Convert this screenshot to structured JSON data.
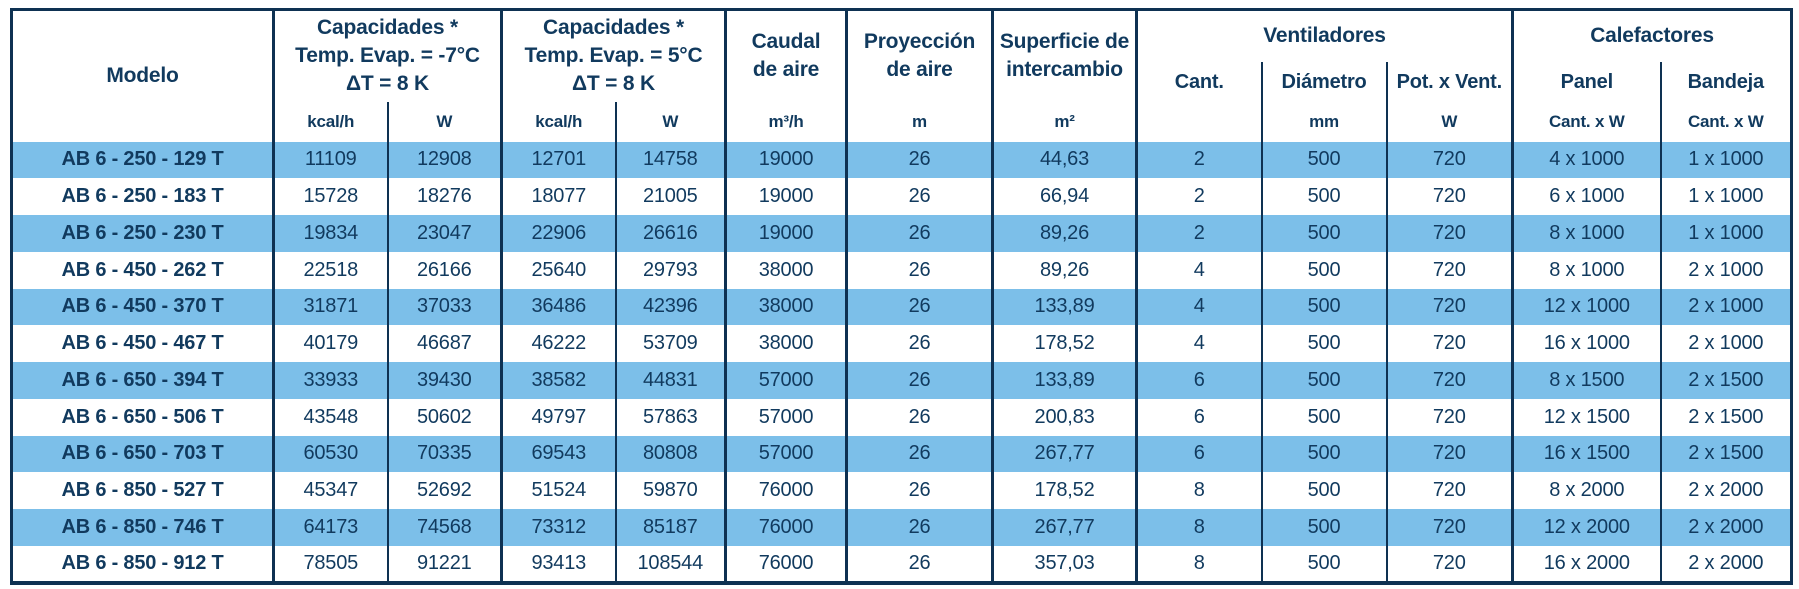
{
  "header": {
    "modelo": "Modelo",
    "cap_minus7": {
      "line1": "Capacidades *",
      "line2": "Temp. Evap. = -7°C",
      "line3": "ΔT = 8 K"
    },
    "cap_plus5": {
      "line1": "Capacidades *",
      "line2": "Temp. Evap. = 5°C",
      "line3": "ΔT = 8 K"
    },
    "kcal_unit": "kcal/h",
    "w_unit": "W",
    "caudal": {
      "line1": "Caudal",
      "line2": "de aire",
      "unit": "m³/h"
    },
    "proyeccion": {
      "line1": "Proyección",
      "line2": "de aire",
      "unit": "m"
    },
    "superficie": {
      "line1": "Superficie de",
      "line2": "intercambio",
      "unit": "m²"
    },
    "ventiladores": {
      "label": "Ventiladores",
      "cant": "Cant.",
      "diametro": "Diámetro",
      "diametro_unit": "mm",
      "pot": "Pot. x Vent.",
      "pot_unit": "W"
    },
    "calefactores": {
      "label": "Calefactores",
      "panel": "Panel",
      "panel_unit": "Cant. x W",
      "bandeja": "Bandeja",
      "bandeja_unit": "Cant. x W"
    }
  },
  "rows": [
    [
      "AB 6 - 250 - 129 T",
      "11109",
      "12908",
      "12701",
      "14758",
      "19000",
      "26",
      "44,63",
      "2",
      "500",
      "720",
      "4 x 1000",
      "1 x 1000"
    ],
    [
      "AB 6 - 250 - 183 T",
      "15728",
      "18276",
      "18077",
      "21005",
      "19000",
      "26",
      "66,94",
      "2",
      "500",
      "720",
      "6 x 1000",
      "1 x 1000"
    ],
    [
      "AB 6 - 250 - 230 T",
      "19834",
      "23047",
      "22906",
      "26616",
      "19000",
      "26",
      "89,26",
      "2",
      "500",
      "720",
      "8 x 1000",
      "1 x 1000"
    ],
    [
      "AB 6 - 450 - 262 T",
      "22518",
      "26166",
      "25640",
      "29793",
      "38000",
      "26",
      "89,26",
      "4",
      "500",
      "720",
      "8 x 1000",
      "2 x 1000"
    ],
    [
      "AB 6 - 450 - 370 T",
      "31871",
      "37033",
      "36486",
      "42396",
      "38000",
      "26",
      "133,89",
      "4",
      "500",
      "720",
      "12 x 1000",
      "2 x 1000"
    ],
    [
      "AB 6 - 450 - 467 T",
      "40179",
      "46687",
      "46222",
      "53709",
      "38000",
      "26",
      "178,52",
      "4",
      "500",
      "720",
      "16 x 1000",
      "2 x 1000"
    ],
    [
      "AB 6 - 650 - 394 T",
      "33933",
      "39430",
      "38582",
      "44831",
      "57000",
      "26",
      "133,89",
      "6",
      "500",
      "720",
      "8 x 1500",
      "2 x 1500"
    ],
    [
      "AB 6 - 650 - 506 T",
      "43548",
      "50602",
      "49797",
      "57863",
      "57000",
      "26",
      "200,83",
      "6",
      "500",
      "720",
      "12 x 1500",
      "2 x 1500"
    ],
    [
      "AB 6 - 650 - 703 T",
      "60530",
      "70335",
      "69543",
      "80808",
      "57000",
      "26",
      "267,77",
      "6",
      "500",
      "720",
      "16 x 1500",
      "2 x 1500"
    ],
    [
      "AB 6 - 850 - 527 T",
      "45347",
      "52692",
      "51524",
      "59870",
      "76000",
      "26",
      "178,52",
      "8",
      "500",
      "720",
      "8 x 2000",
      "2 x 2000"
    ],
    [
      "AB 6 - 850 - 746 T",
      "64173",
      "74568",
      "73312",
      "85187",
      "76000",
      "26",
      "267,77",
      "8",
      "500",
      "720",
      "12 x 2000",
      "2 x 2000"
    ],
    [
      "AB 6 - 850 - 912 T",
      "78505",
      "91221",
      "93413",
      "108544",
      "76000",
      "26",
      "357,03",
      "8",
      "500",
      "720",
      "16 x 2000",
      "2 x 2000"
    ]
  ],
  "colors": {
    "row_highlight": "#7CBFE9",
    "text": "#113A5E",
    "border": "#0E3152",
    "background": "#FFFFFF"
  }
}
